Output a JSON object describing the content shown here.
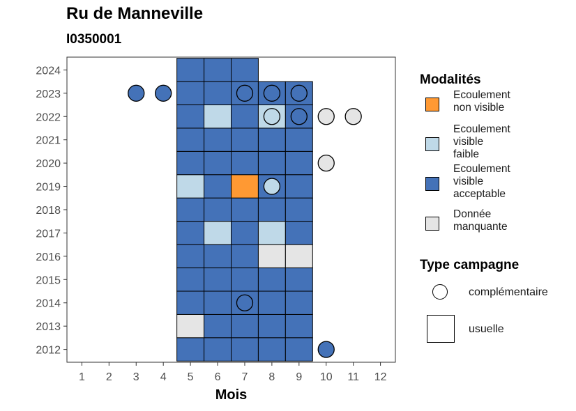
{
  "title": "Ru de Manneville",
  "subtitle": "I0350001",
  "legend_modalites": {
    "title": "Modalités",
    "items": [
      {
        "label": "Ecoulement non visible",
        "color": "#FF9933"
      },
      {
        "label": "Ecoulement visible faible",
        "color": "#BFD9E8"
      },
      {
        "label": "Ecoulement visible acceptable",
        "color": "#4472B8"
      },
      {
        "label": "Donnée manquante",
        "color": "#E5E5E5"
      }
    ]
  },
  "legend_campagne": {
    "title": "Type campagne",
    "items": [
      {
        "label": "complémentaire",
        "shape": "circle"
      },
      {
        "label": "usuelle",
        "shape": "square"
      }
    ]
  },
  "chart_data": {
    "type": "heatmap",
    "xlabel": "Mois",
    "ylabel": "",
    "x_ticks": [
      1,
      2,
      3,
      4,
      5,
      6,
      7,
      8,
      9,
      10,
      11,
      12
    ],
    "y_ticks": [
      2012,
      2013,
      2014,
      2015,
      2016,
      2017,
      2018,
      2019,
      2020,
      2021,
      2022,
      2023,
      2024
    ],
    "categories_colors": {
      "non_visible": "#FF9933",
      "faible": "#BFD9E8",
      "acceptable": "#4472B8",
      "manquante": "#E5E5E5"
    },
    "usuelle": [
      {
        "year": 2024,
        "month": 5,
        "cat": "acceptable"
      },
      {
        "year": 2024,
        "month": 6,
        "cat": "acceptable"
      },
      {
        "year": 2024,
        "month": 7,
        "cat": "acceptable"
      },
      {
        "year": 2023,
        "month": 5,
        "cat": "acceptable"
      },
      {
        "year": 2023,
        "month": 6,
        "cat": "acceptable"
      },
      {
        "year": 2023,
        "month": 7,
        "cat": "acceptable"
      },
      {
        "year": 2023,
        "month": 8,
        "cat": "acceptable"
      },
      {
        "year": 2023,
        "month": 9,
        "cat": "acceptable"
      },
      {
        "year": 2022,
        "month": 5,
        "cat": "acceptable"
      },
      {
        "year": 2022,
        "month": 6,
        "cat": "faible"
      },
      {
        "year": 2022,
        "month": 7,
        "cat": "acceptable"
      },
      {
        "year": 2022,
        "month": 8,
        "cat": "faible"
      },
      {
        "year": 2022,
        "month": 9,
        "cat": "acceptable"
      },
      {
        "year": 2021,
        "month": 5,
        "cat": "acceptable"
      },
      {
        "year": 2021,
        "month": 6,
        "cat": "acceptable"
      },
      {
        "year": 2021,
        "month": 7,
        "cat": "acceptable"
      },
      {
        "year": 2021,
        "month": 8,
        "cat": "acceptable"
      },
      {
        "year": 2021,
        "month": 9,
        "cat": "acceptable"
      },
      {
        "year": 2020,
        "month": 5,
        "cat": "acceptable"
      },
      {
        "year": 2020,
        "month": 6,
        "cat": "acceptable"
      },
      {
        "year": 2020,
        "month": 7,
        "cat": "acceptable"
      },
      {
        "year": 2020,
        "month": 8,
        "cat": "acceptable"
      },
      {
        "year": 2020,
        "month": 9,
        "cat": "acceptable"
      },
      {
        "year": 2019,
        "month": 5,
        "cat": "faible"
      },
      {
        "year": 2019,
        "month": 6,
        "cat": "acceptable"
      },
      {
        "year": 2019,
        "month": 7,
        "cat": "non_visible"
      },
      {
        "year": 2019,
        "month": 8,
        "cat": "acceptable"
      },
      {
        "year": 2019,
        "month": 9,
        "cat": "acceptable"
      },
      {
        "year": 2018,
        "month": 5,
        "cat": "acceptable"
      },
      {
        "year": 2018,
        "month": 6,
        "cat": "acceptable"
      },
      {
        "year": 2018,
        "month": 7,
        "cat": "acceptable"
      },
      {
        "year": 2018,
        "month": 8,
        "cat": "acceptable"
      },
      {
        "year": 2018,
        "month": 9,
        "cat": "acceptable"
      },
      {
        "year": 2017,
        "month": 5,
        "cat": "acceptable"
      },
      {
        "year": 2017,
        "month": 6,
        "cat": "faible"
      },
      {
        "year": 2017,
        "month": 7,
        "cat": "acceptable"
      },
      {
        "year": 2017,
        "month": 8,
        "cat": "faible"
      },
      {
        "year": 2017,
        "month": 9,
        "cat": "acceptable"
      },
      {
        "year": 2016,
        "month": 5,
        "cat": "acceptable"
      },
      {
        "year": 2016,
        "month": 6,
        "cat": "acceptable"
      },
      {
        "year": 2016,
        "month": 7,
        "cat": "acceptable"
      },
      {
        "year": 2016,
        "month": 8,
        "cat": "manquante"
      },
      {
        "year": 2016,
        "month": 9,
        "cat": "manquante"
      },
      {
        "year": 2015,
        "month": 5,
        "cat": "acceptable"
      },
      {
        "year": 2015,
        "month": 6,
        "cat": "acceptable"
      },
      {
        "year": 2015,
        "month": 7,
        "cat": "acceptable"
      },
      {
        "year": 2015,
        "month": 8,
        "cat": "acceptable"
      },
      {
        "year": 2015,
        "month": 9,
        "cat": "acceptable"
      },
      {
        "year": 2014,
        "month": 5,
        "cat": "acceptable"
      },
      {
        "year": 2014,
        "month": 6,
        "cat": "acceptable"
      },
      {
        "year": 2014,
        "month": 7,
        "cat": "acceptable"
      },
      {
        "year": 2014,
        "month": 8,
        "cat": "acceptable"
      },
      {
        "year": 2014,
        "month": 9,
        "cat": "acceptable"
      },
      {
        "year": 2013,
        "month": 5,
        "cat": "manquante"
      },
      {
        "year": 2013,
        "month": 6,
        "cat": "acceptable"
      },
      {
        "year": 2013,
        "month": 7,
        "cat": "acceptable"
      },
      {
        "year": 2013,
        "month": 8,
        "cat": "acceptable"
      },
      {
        "year": 2013,
        "month": 9,
        "cat": "acceptable"
      },
      {
        "year": 2012,
        "month": 5,
        "cat": "acceptable"
      },
      {
        "year": 2012,
        "month": 6,
        "cat": "acceptable"
      },
      {
        "year": 2012,
        "month": 7,
        "cat": "acceptable"
      },
      {
        "year": 2012,
        "month": 8,
        "cat": "acceptable"
      },
      {
        "year": 2012,
        "month": 9,
        "cat": "acceptable"
      }
    ],
    "complementaire": [
      {
        "year": 2023,
        "month": 3,
        "cat": "acceptable"
      },
      {
        "year": 2023,
        "month": 4,
        "cat": "acceptable"
      },
      {
        "year": 2023,
        "month": 7,
        "cat": "acceptable"
      },
      {
        "year": 2023,
        "month": 8,
        "cat": "acceptable"
      },
      {
        "year": 2023,
        "month": 9,
        "cat": "acceptable"
      },
      {
        "year": 2022,
        "month": 8,
        "cat": "faible"
      },
      {
        "year": 2022,
        "month": 9,
        "cat": "acceptable"
      },
      {
        "year": 2022,
        "month": 10,
        "cat": "manquante"
      },
      {
        "year": 2022,
        "month": 11,
        "cat": "manquante"
      },
      {
        "year": 2020,
        "month": 10,
        "cat": "manquante"
      },
      {
        "year": 2019,
        "month": 8,
        "cat": "faible"
      },
      {
        "year": 2014,
        "month": 7,
        "cat": "acceptable"
      },
      {
        "year": 2012,
        "month": 10,
        "cat": "acceptable"
      }
    ]
  }
}
